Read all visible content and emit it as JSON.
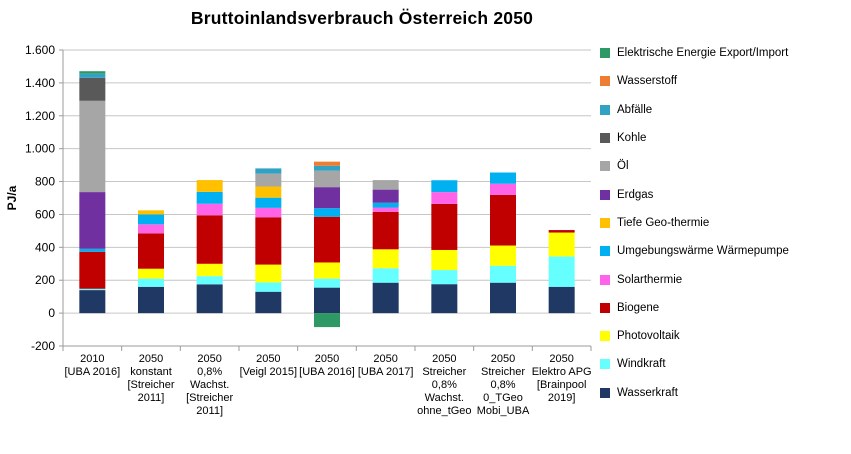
{
  "chart_data": {
    "type": "bar",
    "stacked": true,
    "title": "Bruttoinlandsverbrauch Österreich 2050",
    "xlabel": "",
    "ylabel": "PJ/a",
    "ylim": [
      -200,
      1600
    ],
    "y_step": 200,
    "y_tick_labels": [
      "1.600",
      "1.400",
      "1.200",
      "1.000",
      "800",
      "600",
      "400",
      "200",
      "0",
      "-200"
    ],
    "grid": true,
    "legend_position": "right",
    "legend_order": "reverse-of-stack",
    "categories": [
      "2010\n[UBA 2016]",
      "2050\nkonstant\n[Streicher\n2011]",
      "2050\n0,8%\nWachst.\n[Streicher\n2011]",
      "2050\n[Veigl 2015]",
      "2050\n[UBA 2016]",
      "2050\n[UBA 2017]",
      "2050\nStreicher\n0,8%\nWachst.\nohne_tGeo",
      "2050\nStreicher\n0,8%\n0_TGeo\nMobi_UBA",
      "2050\nElektro APG\n[Brainpool\n2019]"
    ],
    "unit": "PJ/a",
    "series": [
      {
        "name": "Wasserkraft",
        "color": "#1F3864",
        "values": [
          140,
          160,
          175,
          130,
          155,
          185,
          176,
          185,
          160
        ]
      },
      {
        "name": "Windkraft",
        "color": "#66FFFF",
        "values": [
          8,
          50,
          50,
          57,
          55,
          88,
          86,
          103,
          185
        ]
      },
      {
        "name": "Photovoltaik",
        "color": "#FFFF00",
        "values": [
          0,
          60,
          75,
          108,
          98,
          115,
          122,
          123,
          145
        ]
      },
      {
        "name": "Biogene",
        "color": "#C00000",
        "values": [
          225,
          215,
          295,
          288,
          278,
          228,
          280,
          308,
          15
        ]
      },
      {
        "name": "Solarthermie",
        "color": "#FF64E8",
        "values": [
          0,
          55,
          70,
          57,
          0,
          26,
          72,
          68,
          0
        ]
      },
      {
        "name": "Umgebungswärme Wärmepumpe",
        "color": "#00B0F0",
        "values": [
          18,
          60,
          72,
          62,
          52,
          29,
          72,
          68,
          0
        ]
      },
      {
        "name": "Tiefe Geo-thermie",
        "color": "#FFC000",
        "values": [
          0,
          25,
          72,
          68,
          0,
          0,
          0,
          0,
          0
        ]
      },
      {
        "name": "Erdgas",
        "color": "#7030A0",
        "values": [
          345,
          0,
          0,
          0,
          128,
          80,
          0,
          0,
          0
        ]
      },
      {
        "name": "Öl",
        "color": "#A6A6A6",
        "values": [
          555,
          0,
          0,
          78,
          100,
          58,
          0,
          0,
          0
        ]
      },
      {
        "name": "Kohle",
        "color": "#595959",
        "values": [
          140,
          0,
          0,
          0,
          0,
          0,
          0,
          0,
          0
        ]
      },
      {
        "name": "Abfälle",
        "color": "#31A2C4",
        "values": [
          25,
          0,
          0,
          32,
          30,
          0,
          0,
          0,
          0
        ]
      },
      {
        "name": "Wasserstoff",
        "color": "#ED7D31",
        "values": [
          0,
          0,
          0,
          0,
          25,
          0,
          0,
          0,
          0
        ]
      },
      {
        "name": "Elektrische Energie Export/Import",
        "color": "#2E9965",
        "values": [
          15,
          0,
          0,
          0,
          -85,
          0,
          0,
          0,
          0
        ]
      }
    ]
  }
}
